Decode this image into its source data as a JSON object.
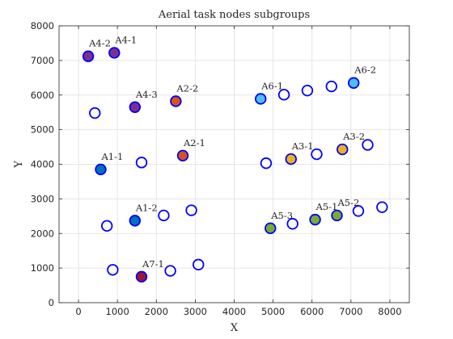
{
  "chart_data": {
    "type": "scatter",
    "title": "Aerial task nodes subgroups",
    "xlabel": "X",
    "ylabel": "Y",
    "xlim": [
      -500,
      8500
    ],
    "ylim": [
      0,
      8000
    ],
    "xticks": [
      0,
      1000,
      2000,
      3000,
      4000,
      5000,
      6000,
      7000,
      8000
    ],
    "yticks": [
      0,
      1000,
      2000,
      3000,
      4000,
      5000,
      6000,
      7000,
      8000
    ],
    "grid": true,
    "labeled_points": [
      {
        "label": "A4-2",
        "x": 250,
        "y": 7120,
        "color": "#7e2f8e"
      },
      {
        "label": "A4-1",
        "x": 920,
        "y": 7220,
        "color": "#7e2f8e"
      },
      {
        "label": "A4-3",
        "x": 1450,
        "y": 5650,
        "color": "#7e2f8e"
      },
      {
        "label": "A2-2",
        "x": 2500,
        "y": 5820,
        "color": "#d95319"
      },
      {
        "label": "A2-1",
        "x": 2680,
        "y": 4250,
        "color": "#d95319"
      },
      {
        "label": "A1-1",
        "x": 570,
        "y": 3850,
        "color": "#0072bd"
      },
      {
        "label": "A1-2",
        "x": 1450,
        "y": 2370,
        "color": "#0072bd"
      },
      {
        "label": "A7-1",
        "x": 1620,
        "y": 750,
        "color": "#a2142f"
      },
      {
        "label": "A6-1",
        "x": 4680,
        "y": 5890,
        "color": "#4dbeee"
      },
      {
        "label": "A6-2",
        "x": 7070,
        "y": 6350,
        "color": "#4dbeee"
      },
      {
        "label": "A3-1",
        "x": 5460,
        "y": 4150,
        "color": "#edb120"
      },
      {
        "label": "A3-2",
        "x": 6780,
        "y": 4430,
        "color": "#edb120"
      },
      {
        "label": "A5-3",
        "x": 4930,
        "y": 2150,
        "color": "#77ac30"
      },
      {
        "label": "A5-1",
        "x": 6080,
        "y": 2400,
        "color": "#77ac30"
      },
      {
        "label": "A5-2",
        "x": 6640,
        "y": 2520,
        "color": "#77ac30"
      }
    ],
    "unassigned_points": [
      {
        "x": 420,
        "y": 5480
      },
      {
        "x": 1620,
        "y": 4050
      },
      {
        "x": 730,
        "y": 2220
      },
      {
        "x": 2190,
        "y": 2520
      },
      {
        "x": 2900,
        "y": 2670
      },
      {
        "x": 880,
        "y": 950
      },
      {
        "x": 2360,
        "y": 920
      },
      {
        "x": 3080,
        "y": 1100
      },
      {
        "x": 5280,
        "y": 6010
      },
      {
        "x": 5880,
        "y": 6130
      },
      {
        "x": 6500,
        "y": 6250
      },
      {
        "x": 4820,
        "y": 4030
      },
      {
        "x": 6120,
        "y": 4290
      },
      {
        "x": 7430,
        "y": 4560
      },
      {
        "x": 5500,
        "y": 2280
      },
      {
        "x": 7190,
        "y": 2650
      },
      {
        "x": 7800,
        "y": 2760
      }
    ],
    "marker_edge_color": "#0000ff",
    "grid_color": "#dfdfdf",
    "axis_color": "#262626"
  }
}
